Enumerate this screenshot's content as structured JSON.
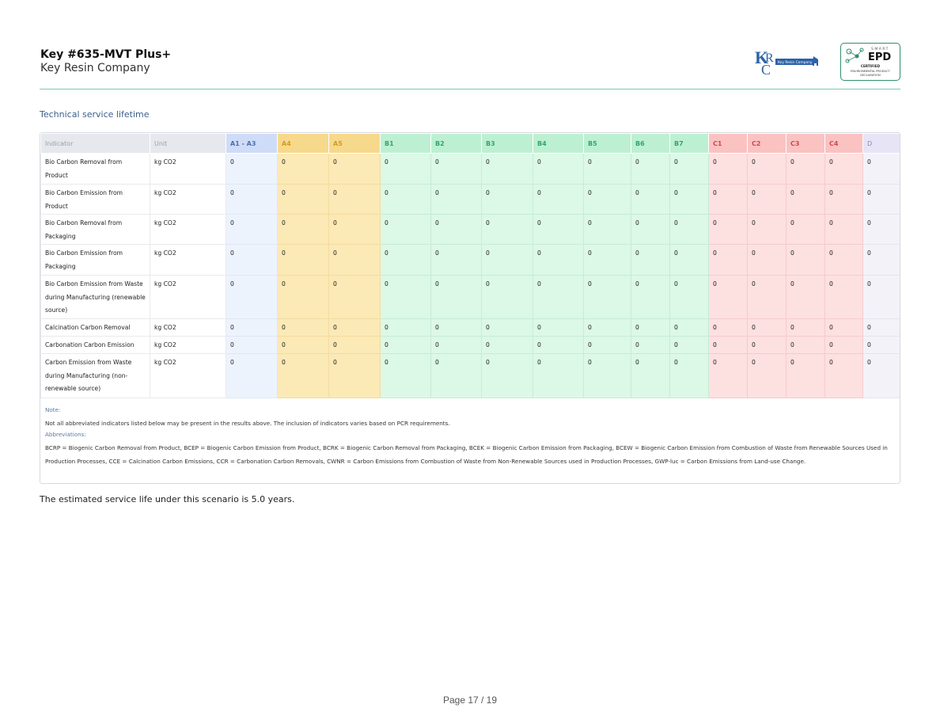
{
  "header": {
    "product_title": "Key #635-MVT Plus+",
    "company_name": "Key Resin Company",
    "krc_logo": {
      "letters": "KRC",
      "banner_text": "Key Resin Company"
    },
    "epd_badge": {
      "smart": "SMART",
      "epd": "EPD",
      "certified": "CERTIFIED",
      "line1": "ENVIRONMENTAL PRODUCT",
      "line2": "DECLARATION"
    }
  },
  "section_title": "Technical service lifetime",
  "table": {
    "headers": {
      "indicator": "Indicator",
      "unit": "Unit",
      "a13": "A1 - A3",
      "a4": "A4",
      "a5": "A5",
      "b1": "B1",
      "b2": "B2",
      "b3": "B3",
      "b4": "B4",
      "b5": "B5",
      "b6": "B6",
      "b7": "B7",
      "c1": "C1",
      "c2": "C2",
      "c3": "C3",
      "c4": "C4",
      "d": "D"
    },
    "rows": [
      {
        "indicator": "Bio Carbon Removal from Product",
        "unit": "kg CO2",
        "values": [
          "0",
          "0",
          "0",
          "0",
          "0",
          "0",
          "0",
          "0",
          "0",
          "0",
          "0",
          "0",
          "0",
          "0",
          "0"
        ]
      },
      {
        "indicator": "Bio Carbon Emission from Product",
        "unit": "kg CO2",
        "values": [
          "0",
          "0",
          "0",
          "0",
          "0",
          "0",
          "0",
          "0",
          "0",
          "0",
          "0",
          "0",
          "0",
          "0",
          "0"
        ]
      },
      {
        "indicator": "Bio Carbon Removal from Packaging",
        "unit": "kg CO2",
        "values": [
          "0",
          "0",
          "0",
          "0",
          "0",
          "0",
          "0",
          "0",
          "0",
          "0",
          "0",
          "0",
          "0",
          "0",
          "0"
        ]
      },
      {
        "indicator": "Bio Carbon Emission from Packaging",
        "unit": "kg CO2",
        "values": [
          "0",
          "0",
          "0",
          "0",
          "0",
          "0",
          "0",
          "0",
          "0",
          "0",
          "0",
          "0",
          "0",
          "0",
          "0"
        ]
      },
      {
        "indicator": "Bio Carbon Emission from Waste during Manufacturing (renewable source)",
        "unit": "kg CO2",
        "values": [
          "0",
          "0",
          "0",
          "0",
          "0",
          "0",
          "0",
          "0",
          "0",
          "0",
          "0",
          "0",
          "0",
          "0",
          "0"
        ]
      },
      {
        "indicator": "Calcination Carbon Removal",
        "unit": "kg CO2",
        "values": [
          "0",
          "0",
          "0",
          "0",
          "0",
          "0",
          "0",
          "0",
          "0",
          "0",
          "0",
          "0",
          "0",
          "0",
          "0"
        ]
      },
      {
        "indicator": "Carbonation Carbon Emission",
        "unit": "kg CO2",
        "values": [
          "0",
          "0",
          "0",
          "0",
          "0",
          "0",
          "0",
          "0",
          "0",
          "0",
          "0",
          "0",
          "0",
          "0",
          "0"
        ]
      },
      {
        "indicator": "Carbon Emission from Waste during Manufacturing (non-renewable source)",
        "unit": "kg CO2",
        "values": [
          "0",
          "0",
          "0",
          "0",
          "0",
          "0",
          "0",
          "0",
          "0",
          "0",
          "0",
          "0",
          "0",
          "0",
          "0"
        ]
      }
    ]
  },
  "notes": {
    "note_label": "Note:",
    "note_text": "Not all abbreviated indicators listed below may be present in the results above. The inclusion of indicators varies based on PCR requirements.",
    "abbr_label": "Abbreviations:",
    "abbr_text": "BCRP = Biogenic Carbon Removal from Product, BCEP = Biogenic Carbon Emission from Product, BCRK = Biogenic Carbon Removal from Packaging, BCEK = Biogenic Carbon Emission from Packaging, BCEW = Biogenic Carbon Emission from Combustion of Waste from Renewable Sources Used in Production Processes, CCE = Calcination Carbon Emissions, CCR = Carbonation Carbon Removals, CWNR = Carbon Emissions from Combustion of Waste from Non-Renewable Sources used in Production Processes, GWP-luc = Carbon Emissions from Land-use Change."
  },
  "service_life_text": "The estimated service life under this scenario is 5.0 years.",
  "page_number": "Page 17 / 19",
  "colors": {
    "accent_line": "#7ec8b8",
    "title_blue": "#3a5f8a",
    "krc_blue": "#2c62a8",
    "epd_green": "#2f8f6a"
  }
}
